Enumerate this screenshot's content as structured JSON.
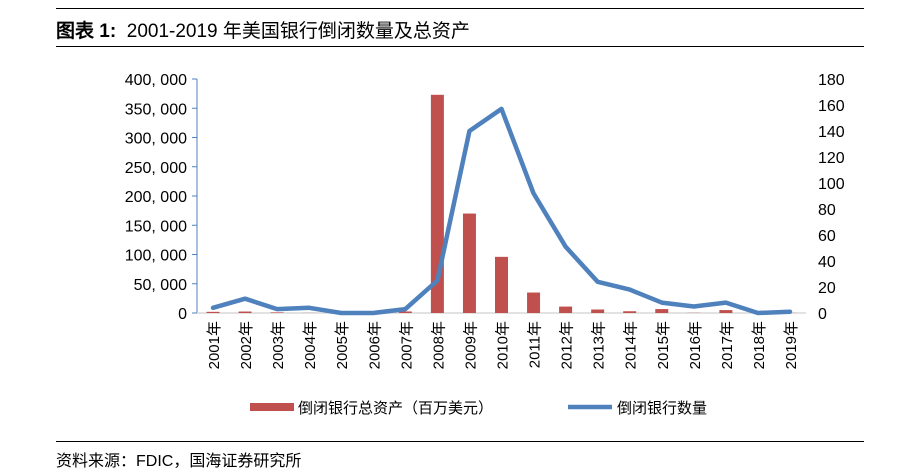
{
  "title_prefix": "图表 1:",
  "title_text": "2001-2019 年美国银行倒闭数量及总资产",
  "source": "资料来源：FDIC，国海证券研究所",
  "chart_data": {
    "type": "bar+line",
    "categories": [
      "2001年",
      "2002年",
      "2003年",
      "2004年",
      "2005年",
      "2006年",
      "2007年",
      "2008年",
      "2009年",
      "2010年",
      "2011年",
      "2012年",
      "2013年",
      "2014年",
      "2015年",
      "2016年",
      "2017年",
      "2018年",
      "2019年"
    ],
    "series": [
      {
        "name": "倒闭银行总资产（百万美元）",
        "type": "bar",
        "axis": "left",
        "color": "#C0504D",
        "values": [
          2000,
          2500,
          1000,
          200,
          0,
          0,
          2600,
          373000,
          170000,
          96000,
          35000,
          11000,
          6000,
          3000,
          6700,
          300,
          5000,
          0,
          200
        ]
      },
      {
        "name": "倒闭银行数量",
        "type": "line",
        "axis": "right",
        "color": "#4F81BD",
        "values": [
          4,
          11,
          3,
          4,
          0,
          0,
          3,
          25,
          140,
          157,
          92,
          51,
          24,
          18,
          8,
          5,
          8,
          0,
          1
        ]
      }
    ],
    "left_axis": {
      "ylim": [
        0,
        400000
      ],
      "ticks": [
        "0",
        "50, 000",
        "100, 000",
        "150, 000",
        "200, 000",
        "250, 000",
        "300, 000",
        "350, 000",
        "400, 000"
      ]
    },
    "right_axis": {
      "ylim": [
        0,
        180
      ],
      "ticks": [
        "0",
        "20",
        "40",
        "60",
        "80",
        "100",
        "120",
        "140",
        "160",
        "180"
      ]
    },
    "legend_position": "bottom",
    "grid": false
  }
}
